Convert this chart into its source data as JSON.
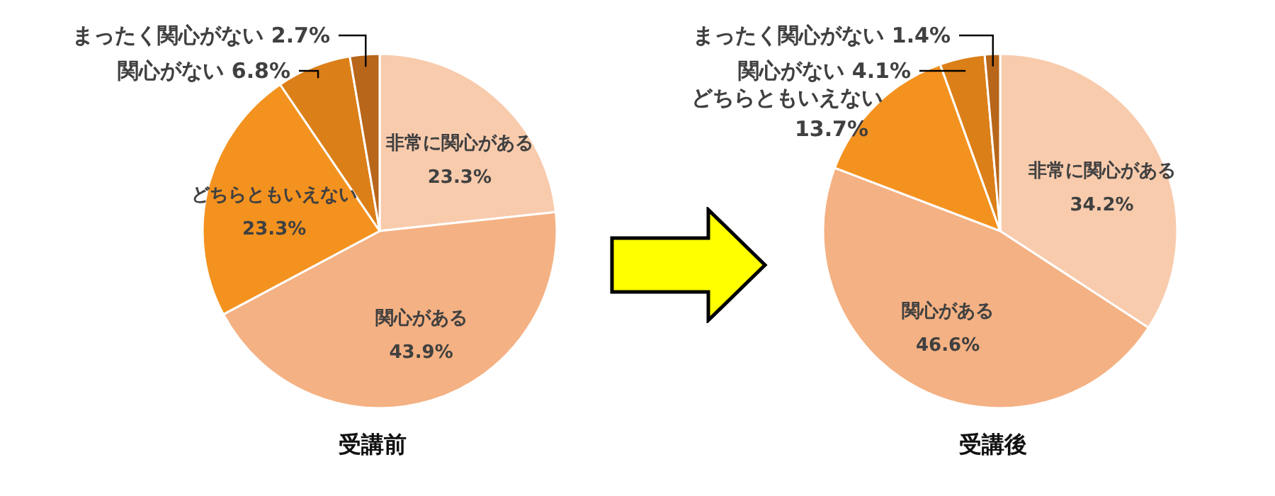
{
  "chart_data": [
    {
      "type": "pie",
      "title": "受講前",
      "categories": [
        "非常に関心がある",
        "関心がある",
        "どちらともいえない",
        "関心がない",
        "まったく関心がない"
      ],
      "values": [
        23.3,
        43.9,
        23.3,
        6.8,
        2.7
      ],
      "value_labels": [
        "23.3%",
        "43.9%",
        "23.3%",
        "6.8%",
        "2.7%"
      ],
      "colors": [
        "#f8cbad",
        "#f4b183",
        "#f4921f",
        "#db7f18",
        "#b8661a"
      ]
    },
    {
      "type": "pie",
      "title": "受講後",
      "categories": [
        "非常に関心がある",
        "関心がある",
        "どちらともいえない",
        "関心がない",
        "まったく関心がない"
      ],
      "values": [
        34.2,
        46.6,
        13.7,
        4.1,
        1.4
      ],
      "value_labels": [
        "34.2%",
        "46.6%",
        "13.7%",
        "4.1%",
        "1.4%"
      ],
      "colors": [
        "#f8cbad",
        "#f4b183",
        "#f4921f",
        "#db7f18",
        "#b8661a"
      ]
    }
  ]
}
